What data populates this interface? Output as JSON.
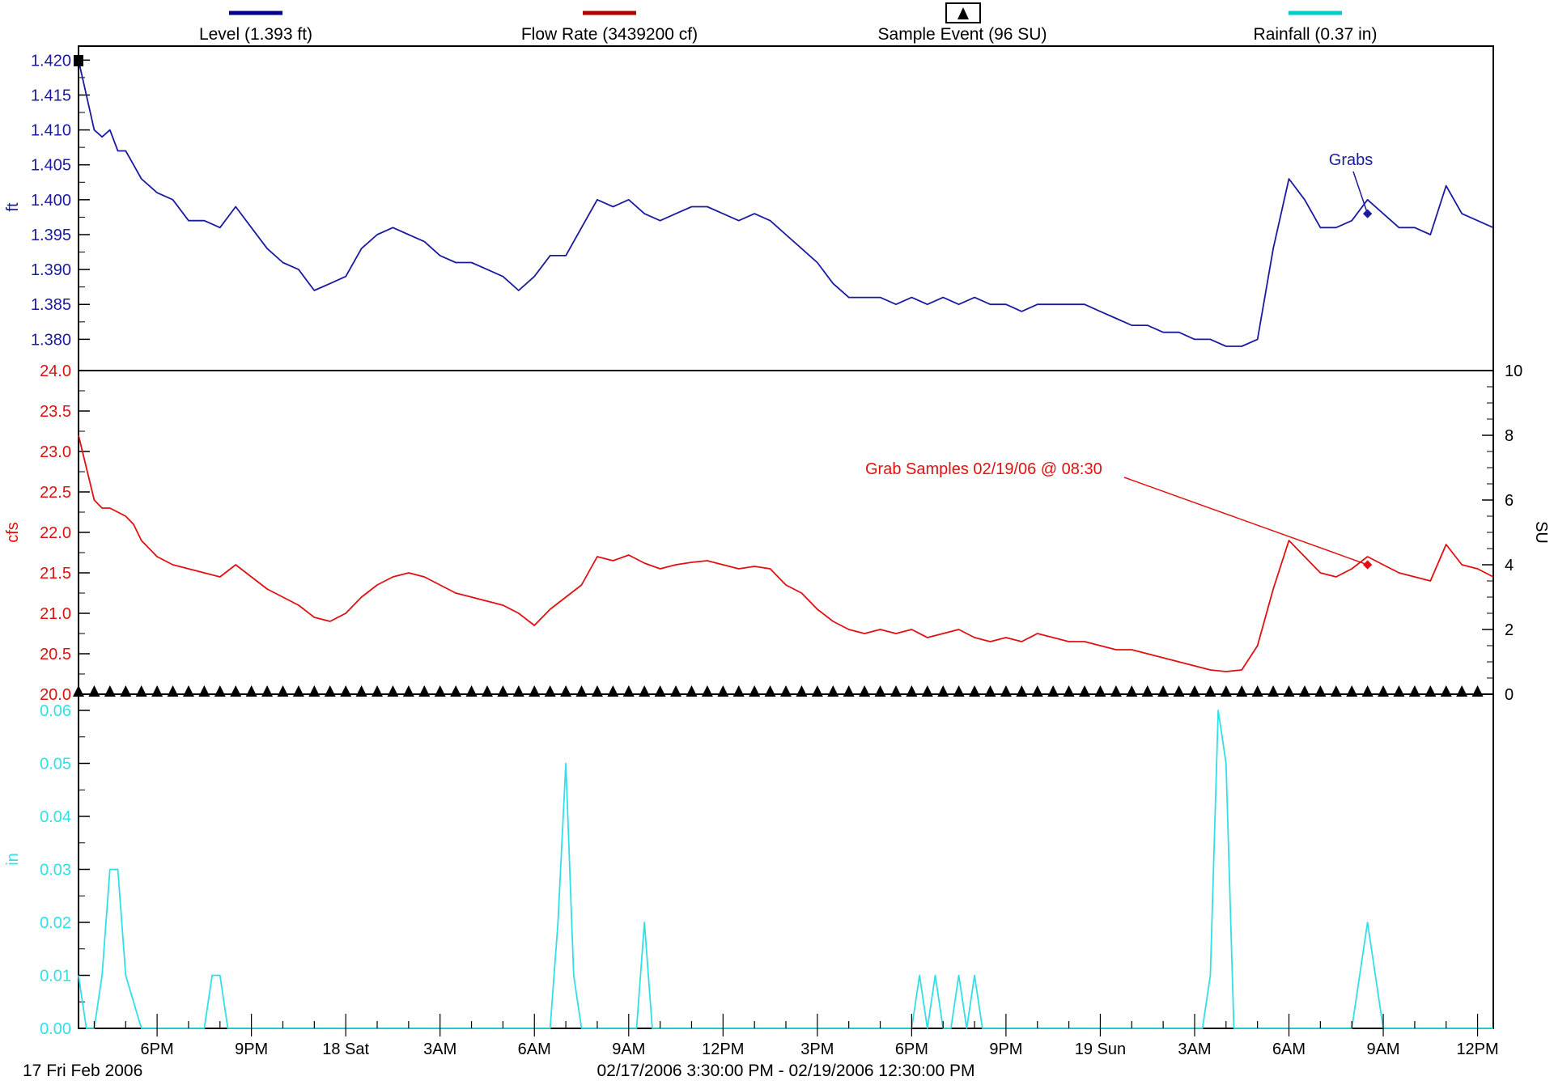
{
  "legend": [
    {
      "label": "Level (1.393 ft)",
      "color": "#00008b",
      "icon": "line-swatch"
    },
    {
      "label": "Flow Rate (3439200 cf)",
      "color": "#b00000",
      "icon": "line-swatch"
    },
    {
      "label": "Sample Event (96 SU)",
      "color": "#000000",
      "icon": "triangle-marker"
    },
    {
      "label": "Rainfall (0.37 in)",
      "color": "#00cccc",
      "icon": "line-swatch"
    }
  ],
  "footer": {
    "start_date": "17 Fri Feb 2006",
    "range": "02/17/2006 3:30:00 PM - 02/19/2006 12:30:00 PM"
  },
  "chart_data": [
    {
      "type": "line",
      "name": "Level (1.393 ft)",
      "ylabel": "ft",
      "color": "#1a1aa0",
      "ylim": [
        1.379,
        1.4205
      ],
      "yticks": [
        "1.380",
        "1.385",
        "1.390",
        "1.395",
        "1.400",
        "1.405",
        "1.410",
        "1.415",
        "1.420"
      ],
      "annotation": {
        "text": "Grabs",
        "time": "02/19/2006 8:30 AM",
        "value": 1.398
      },
      "x_hours": [
        0,
        0.25,
        0.5,
        0.75,
        1,
        1.25,
        1.5,
        1.75,
        2,
        2.5,
        3,
        3.5,
        4,
        4.5,
        5,
        5.5,
        6,
        6.5,
        7,
        7.5,
        8,
        8.5,
        9,
        9.5,
        10,
        10.5,
        11,
        11.5,
        12,
        12.5,
        13,
        13.5,
        14,
        14.5,
        15,
        15.5,
        16,
        16.5,
        17,
        17.5,
        18,
        18.5,
        19,
        19.5,
        20,
        20.5,
        21,
        21.5,
        22,
        22.5,
        23,
        23.5,
        24,
        24.5,
        25,
        25.5,
        26,
        26.5,
        27,
        27.5,
        28,
        28.5,
        29,
        29.5,
        30,
        30.5,
        31,
        31.5,
        32,
        32.5,
        33,
        33.5,
        34,
        34.5,
        35,
        35.5,
        36,
        36.5,
        37,
        37.5,
        38,
        38.5,
        39,
        39.5,
        40,
        40.5,
        41,
        41.5,
        42,
        42.5,
        43,
        43.5,
        44,
        44.5,
        45
      ],
      "values": [
        1.42,
        1.415,
        1.41,
        1.409,
        1.41,
        1.407,
        1.407,
        1.405,
        1.403,
        1.401,
        1.4,
        1.397,
        1.397,
        1.396,
        1.399,
        1.396,
        1.393,
        1.391,
        1.39,
        1.387,
        1.388,
        1.389,
        1.393,
        1.395,
        1.396,
        1.395,
        1.394,
        1.392,
        1.391,
        1.391,
        1.39,
        1.389,
        1.387,
        1.389,
        1.392,
        1.392,
        1.396,
        1.4,
        1.399,
        1.4,
        1.398,
        1.397,
        1.398,
        1.399,
        1.399,
        1.398,
        1.397,
        1.398,
        1.397,
        1.395,
        1.393,
        1.391,
        1.388,
        1.386,
        1.386,
        1.386,
        1.385,
        1.386,
        1.385,
        1.386,
        1.385,
        1.386,
        1.385,
        1.385,
        1.384,
        1.385,
        1.385,
        1.385,
        1.385,
        1.384,
        1.383,
        1.382,
        1.382,
        1.381,
        1.381,
        1.38,
        1.38,
        1.379,
        1.379,
        1.38,
        1.393,
        1.403,
        1.4,
        1.396,
        1.396,
        1.397,
        1.4,
        1.398,
        1.396,
        1.396,
        1.395,
        1.402,
        1.398,
        1.397,
        1.396
      ]
    },
    {
      "type": "line",
      "name": "Flow Rate (3439200 cf)",
      "ylabel": "cfs",
      "color": "#e01010",
      "ylim": [
        20.0,
        24.0
      ],
      "yticks": [
        "20.0",
        "20.5",
        "21.0",
        "21.5",
        "22.0",
        "22.5",
        "23.0",
        "23.5",
        "24.0"
      ],
      "annotation": {
        "text": "Grab Samples 02/19/06 @ 08:30",
        "time": "02/19/2006 8:30 AM",
        "value": 21.6
      },
      "x_hours": [
        0,
        0.25,
        0.5,
        0.75,
        1,
        1.25,
        1.5,
        1.75,
        2,
        2.5,
        3,
        3.5,
        4,
        4.5,
        5,
        5.5,
        6,
        6.5,
        7,
        7.5,
        8,
        8.5,
        9,
        9.5,
        10,
        10.5,
        11,
        11.5,
        12,
        12.5,
        13,
        13.5,
        14,
        14.5,
        15,
        15.5,
        16,
        16.5,
        17,
        17.5,
        18,
        18.5,
        19,
        19.5,
        20,
        20.5,
        21,
        21.5,
        22,
        22.5,
        23,
        23.5,
        24,
        24.5,
        25,
        25.5,
        26,
        26.5,
        27,
        27.5,
        28,
        28.5,
        29,
        29.5,
        30,
        30.5,
        31,
        31.5,
        32,
        32.5,
        33,
        33.5,
        34,
        34.5,
        35,
        35.5,
        36,
        36.5,
        37,
        37.5,
        38,
        38.5,
        39,
        39.5,
        40,
        40.5,
        41,
        41.5,
        42,
        42.5,
        43,
        43.5,
        44,
        44.5,
        45
      ],
      "values": [
        23.2,
        22.8,
        22.4,
        22.3,
        22.3,
        22.25,
        22.2,
        22.1,
        21.9,
        21.7,
        21.6,
        21.55,
        21.5,
        21.45,
        21.6,
        21.45,
        21.3,
        21.2,
        21.1,
        20.95,
        20.9,
        21.0,
        21.2,
        21.35,
        21.45,
        21.5,
        21.45,
        21.35,
        21.25,
        21.2,
        21.15,
        21.1,
        21.0,
        20.85,
        21.05,
        21.2,
        21.35,
        21.7,
        21.65,
        21.72,
        21.62,
        21.55,
        21.6,
        21.63,
        21.65,
        21.6,
        21.55,
        21.58,
        21.55,
        21.35,
        21.25,
        21.05,
        20.9,
        20.8,
        20.75,
        20.8,
        20.75,
        20.8,
        20.7,
        20.75,
        20.8,
        20.7,
        20.65,
        20.7,
        20.65,
        20.75,
        20.7,
        20.65,
        20.65,
        20.6,
        20.55,
        20.55,
        20.5,
        20.45,
        20.4,
        20.35,
        20.3,
        20.28,
        20.3,
        20.6,
        21.3,
        21.9,
        21.7,
        21.5,
        21.45,
        21.55,
        21.7,
        21.6,
        21.5,
        21.45,
        21.4,
        21.85,
        21.6,
        21.55,
        21.45
      ]
    },
    {
      "type": "scatter",
      "name": "Sample Event (96 SU)",
      "ylabel": "SU",
      "color": "#000000",
      "ylim": [
        0,
        10
      ],
      "yticks": [
        "0",
        "2",
        "4",
        "6",
        "8",
        "10"
      ],
      "x_hours": [
        0,
        0.5,
        1,
        1.5,
        2,
        2.5,
        3,
        3.5,
        4,
        4.5,
        5,
        5.5,
        6,
        6.5,
        7,
        7.5,
        8,
        8.5,
        9,
        9.5,
        10,
        10.5,
        11,
        11.5,
        12,
        12.5,
        13,
        13.5,
        14,
        14.5,
        15,
        15.5,
        16,
        16.5,
        17,
        17.5,
        18,
        18.5,
        19,
        19.5,
        20,
        20.5,
        21,
        21.5,
        22,
        22.5,
        23,
        23.5,
        24,
        24.5,
        25,
        25.5,
        26,
        26.5,
        27,
        27.5,
        28,
        28.5,
        29,
        29.5,
        30,
        30.5,
        31,
        31.5,
        32,
        32.5,
        33,
        33.5,
        34,
        34.5,
        35,
        35.5,
        36,
        36.5,
        37,
        37.5,
        38,
        38.5,
        39,
        39.5,
        40,
        40.5,
        41,
        41.5,
        42,
        42.5,
        43,
        43.5,
        44,
        44.5
      ],
      "values": [
        0,
        0,
        0,
        0,
        0,
        0,
        0,
        0,
        0,
        0,
        0,
        0,
        0,
        0,
        0,
        0,
        0,
        0,
        0,
        0,
        0,
        0,
        0,
        0,
        0,
        0,
        0,
        0,
        0,
        0,
        0,
        0,
        0,
        0,
        0,
        0,
        0,
        0,
        0,
        0,
        0,
        0,
        0,
        0,
        0,
        0,
        0,
        0,
        0,
        0,
        0,
        0,
        0,
        0,
        0,
        0,
        0,
        0,
        0,
        0,
        0,
        0,
        0,
        0,
        0,
        0,
        0,
        0,
        0,
        0,
        0,
        0,
        0,
        0,
        0,
        0,
        0,
        0,
        0,
        0,
        0,
        0,
        0,
        0,
        0,
        0,
        0,
        0,
        0,
        0
      ]
    },
    {
      "type": "line",
      "name": "Rainfall (0.37 in)",
      "ylabel": "in",
      "color": "#30e0e8",
      "ylim": [
        0,
        0.06
      ],
      "yticks": [
        "0.00",
        "0.01",
        "0.02",
        "0.03",
        "0.04",
        "0.05",
        "0.06"
      ],
      "x_hours": [
        0,
        0.25,
        0.5,
        0.75,
        1,
        1.25,
        1.5,
        2,
        2.5,
        3,
        3.5,
        4,
        4.25,
        4.5,
        4.75,
        5,
        5.5,
        6,
        7,
        8,
        9,
        10,
        11,
        12,
        13,
        14,
        15,
        15.25,
        15.5,
        15.75,
        16,
        16.25,
        16.5,
        17,
        17.5,
        17.75,
        18,
        18.25,
        18.5,
        19,
        20,
        21,
        22,
        23,
        24,
        25,
        26,
        26.5,
        26.75,
        27,
        27.25,
        27.5,
        27.75,
        28,
        28.25,
        28.5,
        28.75,
        29,
        29.25,
        29.5,
        30,
        31,
        32,
        33,
        34,
        35,
        35.75,
        36,
        36.25,
        36.5,
        36.75,
        37,
        37.5,
        38,
        38.5,
        39,
        39.5,
        40,
        40.5,
        41,
        41.5,
        42,
        43,
        44,
        45
      ],
      "values": [
        0.01,
        0,
        0,
        0.01,
        0.03,
        0.03,
        0.01,
        0,
        0,
        0,
        0,
        0,
        0.01,
        0.01,
        0,
        0,
        0,
        0,
        0,
        0,
        0,
        0,
        0,
        0,
        0,
        0,
        0,
        0.02,
        0.05,
        0.01,
        0,
        0,
        0,
        0,
        0,
        0,
        0.02,
        0,
        0,
        0,
        0,
        0,
        0,
        0,
        0,
        0,
        0,
        0,
        0.01,
        0,
        0.01,
        0,
        0,
        0.01,
        0,
        0.01,
        0,
        0,
        0,
        0,
        0,
        0,
        0,
        0,
        0,
        0,
        0,
        0.01,
        0.06,
        0.05,
        0,
        0,
        0,
        0,
        0,
        0,
        0,
        0,
        0,
        0.02,
        0,
        0,
        0,
        0,
        0
      ]
    }
  ],
  "x_axis": {
    "start": "02/17/2006 3:30:00 PM",
    "end": "02/19/2006 12:30:00 PM",
    "ticks": [
      {
        "hour": 2.5,
        "label": "6PM"
      },
      {
        "hour": 5.5,
        "label": "9PM"
      },
      {
        "hour": 8.5,
        "label": "18 Sat"
      },
      {
        "hour": 11.5,
        "label": "3AM"
      },
      {
        "hour": 14.5,
        "label": "6AM"
      },
      {
        "hour": 17.5,
        "label": "9AM"
      },
      {
        "hour": 20.5,
        "label": "12PM"
      },
      {
        "hour": 23.5,
        "label": "3PM"
      },
      {
        "hour": 26.5,
        "label": "6PM"
      },
      {
        "hour": 29.5,
        "label": "9PM"
      },
      {
        "hour": 32.5,
        "label": "19 Sun"
      },
      {
        "hour": 35.5,
        "label": "3AM"
      },
      {
        "hour": 38.5,
        "label": "6AM"
      },
      {
        "hour": 41.5,
        "label": "9AM"
      },
      {
        "hour": 44.5,
        "label": "12PM"
      }
    ]
  }
}
